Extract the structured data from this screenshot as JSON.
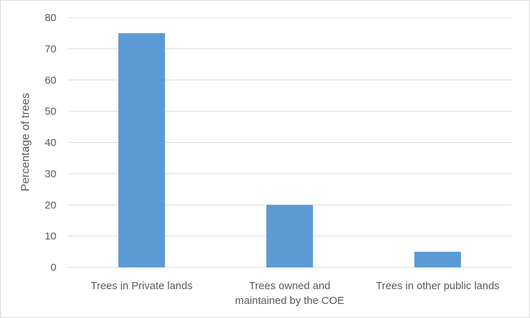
{
  "chart_data": {
    "type": "bar",
    "title": "",
    "xlabel": "",
    "ylabel": "Percentage of trees",
    "categories": [
      [
        "Trees in  Private lands"
      ],
      [
        "Trees owned and",
        "maintained by the COE"
      ],
      [
        "Trees in other public lands"
      ]
    ],
    "values": [
      75,
      20,
      5
    ],
    "ylim": [
      0,
      80
    ],
    "yticks": [
      0,
      10,
      20,
      30,
      40,
      50,
      60,
      70,
      80
    ],
    "grid": true,
    "legend": "none",
    "bar_color": "#5b9bd5",
    "grid_color": "#d9d9d9",
    "text_color": "#595959"
  }
}
